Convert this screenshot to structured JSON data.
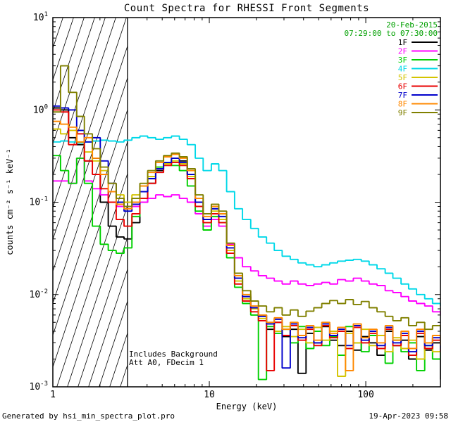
{
  "annotations": {
    "date": "20-Feb-2015",
    "time_range": "07:29:00 to 07:30:00",
    "background_note": "Includes Background",
    "attenuator_note": "Att A0, FDecim 1"
  },
  "footer": {
    "left": "Generated by hsi_min_spectra_plot.pro",
    "right": "19-Apr-2023 09:58"
  },
  "colors": {
    "timestamp": "#00a000",
    "axis": "#000000"
  },
  "legend": {
    "entries": [
      {
        "label": "1F",
        "color": "#000000"
      },
      {
        "label": "2F",
        "color": "#ff00ff"
      },
      {
        "label": "3F",
        "color": "#00d000"
      },
      {
        "label": "4F",
        "color": "#00d8e8"
      },
      {
        "label": "5F",
        "color": "#d4c400"
      },
      {
        "label": "6F",
        "color": "#e80000"
      },
      {
        "label": "7F",
        "color": "#0000cc"
      },
      {
        "label": "8F",
        "color": "#ff8800"
      },
      {
        "label": "9F",
        "color": "#808000"
      }
    ]
  },
  "chart_data": {
    "type": "line",
    "mode": "histogram-steps",
    "title": "Count Spectra for RHESSI Front Segments",
    "xlabel": "Energy (keV)",
    "ylabel": "counts cm⁻² s⁻¹ keV⁻¹",
    "x_scale": "log",
    "y_scale": "log",
    "x_range": [
      1,
      300
    ],
    "y_range": [
      0.001,
      10
    ],
    "x_ticks": [
      1,
      10,
      100
    ],
    "x_tick_labels": [
      "1",
      "10",
      "100"
    ],
    "y_ticks": [
      0.001,
      0.01,
      0.1,
      1,
      10
    ],
    "y_tick_labels": [
      "10^-3",
      "10^-2",
      "10^-1",
      "10^0",
      "10^1"
    ],
    "hatch_region": [
      1,
      3
    ],
    "x": [
      1.0,
      1.12,
      1.26,
      1.42,
      1.59,
      1.79,
      2.01,
      2.26,
      2.54,
      2.85,
      3.2,
      3.6,
      4.04,
      4.54,
      5.1,
      5.73,
      6.44,
      7.23,
      8.13,
      9.13,
      10.3,
      11.5,
      12.9,
      14.5,
      16.3,
      18.4,
      20.6,
      23.2,
      26.0,
      29.2,
      32.9,
      36.9,
      41.5,
      46.6,
      52.3,
      58.8,
      66.0,
      74.2,
      83.3,
      93.6,
      105,
      118,
      133,
      149,
      168,
      188,
      211,
      238,
      267,
      300
    ],
    "series": [
      {
        "name": "1F",
        "color": "#000000",
        "values": [
          1.05,
          1.0,
          0.5,
          0.42,
          0.28,
          0.3,
          0.1,
          0.055,
          0.042,
          0.04,
          0.06,
          0.1,
          0.16,
          0.22,
          0.26,
          0.3,
          0.28,
          0.2,
          0.1,
          0.065,
          0.085,
          0.075,
          0.035,
          0.015,
          0.0095,
          0.007,
          0.006,
          0.0042,
          0.005,
          0.0035,
          0.0042,
          0.0014,
          0.0038,
          0.003,
          0.0045,
          0.0032,
          0.0028,
          0.004,
          0.0025,
          0.0035,
          0.003,
          0.0022,
          0.004,
          0.0028,
          0.0032,
          0.002,
          0.0035,
          0.0025,
          0.003,
          0.0012
        ]
      },
      {
        "name": "2F",
        "color": "#ff00ff",
        "values": [
          0.17,
          0.17,
          0.16,
          0.3,
          0.17,
          0.14,
          0.12,
          0.1,
          0.09,
          0.085,
          0.09,
          0.1,
          0.11,
          0.12,
          0.115,
          0.12,
          0.11,
          0.1,
          0.075,
          0.055,
          0.065,
          0.055,
          0.035,
          0.025,
          0.02,
          0.018,
          0.016,
          0.015,
          0.014,
          0.013,
          0.014,
          0.013,
          0.0125,
          0.013,
          0.0135,
          0.013,
          0.0145,
          0.014,
          0.015,
          0.014,
          0.013,
          0.0125,
          0.011,
          0.0105,
          0.0095,
          0.0085,
          0.008,
          0.0075,
          0.0065,
          0.006
        ]
      },
      {
        "name": "3F",
        "color": "#00d000",
        "values": [
          0.32,
          0.22,
          0.16,
          0.3,
          0.16,
          0.055,
          0.035,
          0.03,
          0.028,
          0.032,
          0.07,
          0.13,
          0.19,
          0.24,
          0.27,
          0.25,
          0.22,
          0.15,
          0.08,
          0.05,
          0.07,
          0.06,
          0.025,
          0.012,
          0.008,
          0.006,
          0.0012,
          0.0045,
          0.0038,
          0.0042,
          0.003,
          0.0045,
          0.0026,
          0.004,
          0.0028,
          0.0035,
          0.0022,
          0.0045,
          0.003,
          0.0024,
          0.0036,
          0.0026,
          0.0018,
          0.0032,
          0.0024,
          0.003,
          0.0015,
          0.0028,
          0.002,
          0.0025
        ]
      },
      {
        "name": "4F",
        "color": "#00d8e8",
        "values": [
          0.45,
          0.46,
          0.45,
          0.44,
          0.45,
          0.46,
          0.47,
          0.46,
          0.45,
          0.47,
          0.5,
          0.52,
          0.5,
          0.48,
          0.5,
          0.52,
          0.48,
          0.42,
          0.3,
          0.22,
          0.26,
          0.22,
          0.13,
          0.085,
          0.065,
          0.052,
          0.042,
          0.036,
          0.03,
          0.026,
          0.024,
          0.022,
          0.021,
          0.02,
          0.021,
          0.022,
          0.023,
          0.0235,
          0.024,
          0.023,
          0.021,
          0.019,
          0.017,
          0.015,
          0.013,
          0.0115,
          0.01,
          0.009,
          0.008,
          0.0075
        ]
      },
      {
        "name": "5F",
        "color": "#d4c400",
        "values": [
          0.62,
          0.55,
          0.6,
          0.45,
          0.35,
          0.28,
          0.22,
          0.16,
          0.12,
          0.1,
          0.12,
          0.15,
          0.19,
          0.23,
          0.26,
          0.28,
          0.26,
          0.19,
          0.1,
          0.06,
          0.08,
          0.065,
          0.03,
          0.014,
          0.009,
          0.007,
          0.0055,
          0.0048,
          0.004,
          0.0045,
          0.0035,
          0.0042,
          0.003,
          0.0044,
          0.0032,
          0.004,
          0.0013,
          0.0038,
          0.003,
          0.0042,
          0.0028,
          0.0036,
          0.0024,
          0.0034,
          0.0026,
          0.0032,
          0.002,
          0.003,
          0.0024,
          0.0028
        ]
      },
      {
        "name": "6F",
        "color": "#e80000",
        "values": [
          1.0,
          0.95,
          0.42,
          0.55,
          0.28,
          0.2,
          0.14,
          0.1,
          0.065,
          0.055,
          0.075,
          0.11,
          0.16,
          0.21,
          0.25,
          0.27,
          0.25,
          0.18,
          0.09,
          0.06,
          0.075,
          0.06,
          0.028,
          0.013,
          0.0085,
          0.0065,
          0.0052,
          0.0015,
          0.005,
          0.0036,
          0.0046,
          0.0032,
          0.0042,
          0.0028,
          0.0046,
          0.0034,
          0.004,
          0.0026,
          0.0044,
          0.003,
          0.0038,
          0.0026,
          0.0042,
          0.0028,
          0.0036,
          0.0022,
          0.0038,
          0.0026,
          0.0032,
          0.0024
        ]
      },
      {
        "name": "7F",
        "color": "#0000cc",
        "values": [
          1.1,
          1.05,
          1.0,
          0.6,
          0.45,
          0.5,
          0.28,
          0.16,
          0.1,
          0.08,
          0.095,
          0.13,
          0.18,
          0.23,
          0.27,
          0.3,
          0.27,
          0.2,
          0.1,
          0.065,
          0.085,
          0.07,
          0.032,
          0.015,
          0.0095,
          0.0072,
          0.0058,
          0.0048,
          0.0054,
          0.0016,
          0.0048,
          0.0034,
          0.0044,
          0.003,
          0.0048,
          0.0036,
          0.0042,
          0.0028,
          0.0046,
          0.0032,
          0.004,
          0.0028,
          0.0044,
          0.003,
          0.0038,
          0.0024,
          0.004,
          0.0028,
          0.0034,
          0.0026
        ]
      },
      {
        "name": "8F",
        "color": "#ff8800",
        "values": [
          0.75,
          0.7,
          0.65,
          0.45,
          0.5,
          0.3,
          0.2,
          0.13,
          0.095,
          0.085,
          0.1,
          0.15,
          0.21,
          0.27,
          0.31,
          0.33,
          0.3,
          0.22,
          0.11,
          0.07,
          0.09,
          0.075,
          0.034,
          0.016,
          0.01,
          0.0075,
          0.006,
          0.005,
          0.0056,
          0.0042,
          0.005,
          0.0036,
          0.0046,
          0.0032,
          0.005,
          0.0038,
          0.0044,
          0.0015,
          0.0048,
          0.0034,
          0.0042,
          0.003,
          0.0046,
          0.0032,
          0.004,
          0.0026,
          0.0042,
          0.003,
          0.0036,
          0.0028
        ]
      },
      {
        "name": "9F",
        "color": "#808000",
        "values": [
          0.95,
          3.0,
          1.55,
          0.85,
          0.55,
          0.38,
          0.24,
          0.16,
          0.11,
          0.09,
          0.11,
          0.16,
          0.22,
          0.28,
          0.32,
          0.34,
          0.31,
          0.23,
          0.12,
          0.075,
          0.095,
          0.08,
          0.036,
          0.017,
          0.011,
          0.0085,
          0.0075,
          0.0065,
          0.0072,
          0.006,
          0.0068,
          0.0058,
          0.0066,
          0.0072,
          0.008,
          0.0086,
          0.008,
          0.0088,
          0.0078,
          0.0084,
          0.0072,
          0.0065,
          0.0058,
          0.0052,
          0.0056,
          0.0046,
          0.005,
          0.0042,
          0.0046,
          0.004
        ]
      }
    ]
  }
}
